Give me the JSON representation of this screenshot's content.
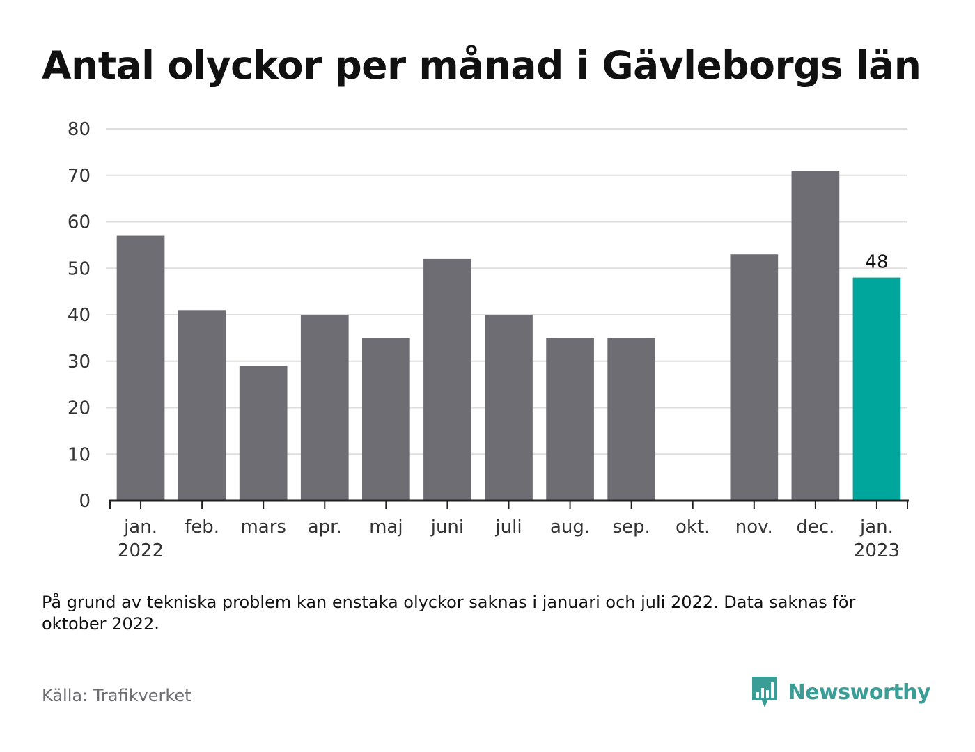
{
  "colors": {
    "bar": "#6e6d73",
    "highlight": "#00a59b",
    "grid": "#dedede",
    "axis": "#222222",
    "brand": "#3a9e96"
  },
  "title": "Antal olyckor per månad i Gävleborgs län",
  "chart_data": {
    "type": "bar",
    "title": "Antal olyckor per månad i Gävleborgs län",
    "xlabel": "",
    "ylabel": "",
    "ylim": [
      0,
      80
    ],
    "yticks": [
      0,
      10,
      20,
      30,
      40,
      50,
      60,
      70,
      80
    ],
    "grid": true,
    "categories": [
      [
        "jan.",
        "2022"
      ],
      [
        "feb."
      ],
      [
        "mars"
      ],
      [
        "apr."
      ],
      [
        "maj"
      ],
      [
        "juni"
      ],
      [
        "juli"
      ],
      [
        "aug."
      ],
      [
        "sep."
      ],
      [
        "okt."
      ],
      [
        "nov."
      ],
      [
        "dec."
      ],
      [
        "jan.",
        "2023"
      ]
    ],
    "values": [
      57,
      41,
      29,
      40,
      35,
      52,
      40,
      35,
      35,
      null,
      53,
      71,
      48
    ],
    "highlight_index": 12,
    "data_labels": [
      {
        "index": 12,
        "text": "48"
      }
    ]
  },
  "note": "På grund av tekniska problem kan enstaka olyckor saknas i januari och juli 2022. Data saknas för oktober 2022.",
  "source": "Källa: Trafikverket",
  "brand": {
    "name": "Newsworthy",
    "icon": "newsworthy-logo-icon"
  }
}
